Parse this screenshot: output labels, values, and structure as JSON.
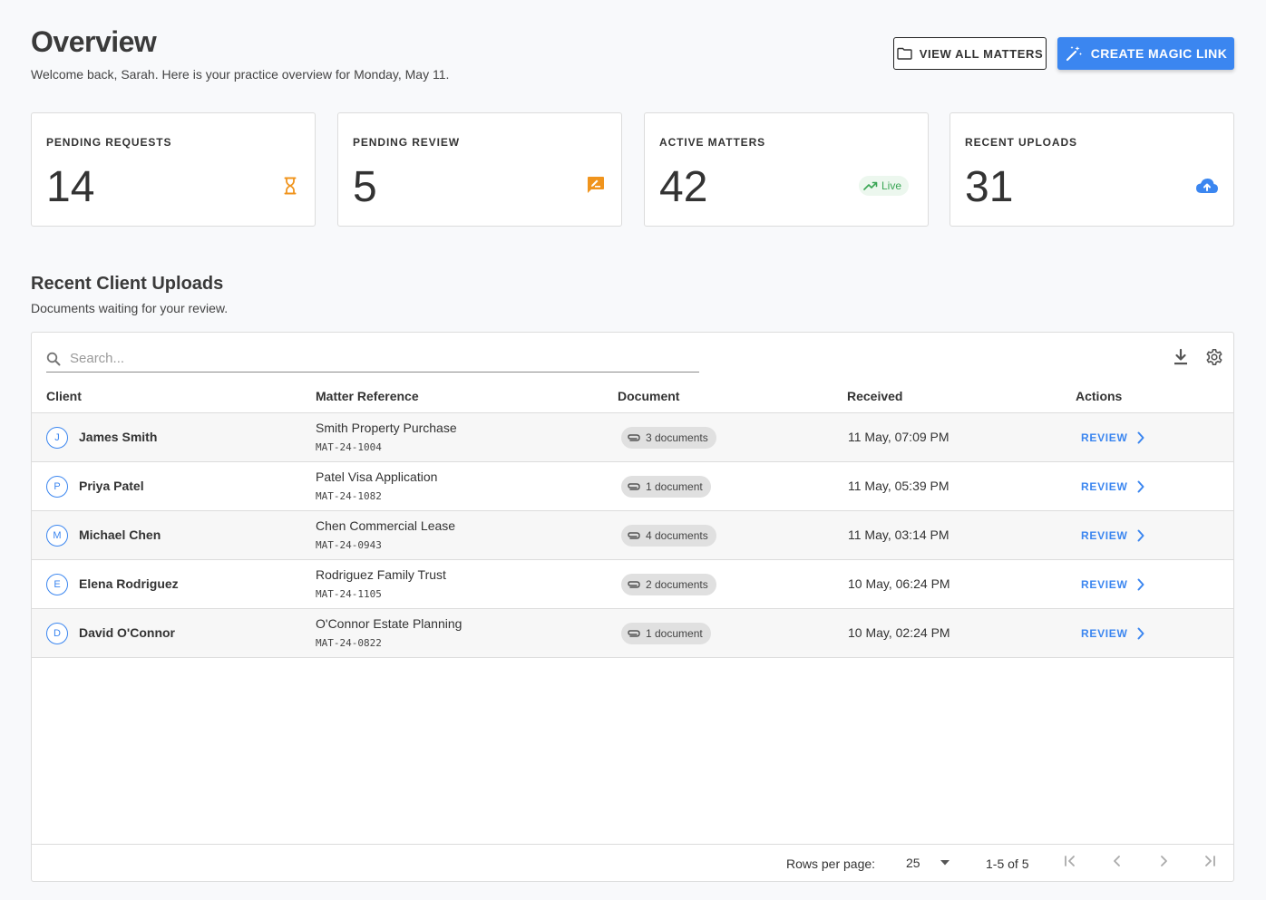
{
  "header": {
    "title": "Overview",
    "subtitle": "Welcome back, Sarah. Here is your practice overview for Monday, May 11.",
    "view_all_label": "VIEW ALL MATTERS",
    "create_link_label": "CREATE MAGIC LINK"
  },
  "stats": [
    {
      "label": "PENDING REQUESTS",
      "value": "14",
      "icon": "hourglass-icon",
      "color": "#f0941d"
    },
    {
      "label": "PENDING REVIEW",
      "value": "5",
      "icon": "rate-review-icon",
      "color": "#f0941d"
    },
    {
      "label": "ACTIVE MATTERS",
      "value": "42",
      "badge": "Live",
      "icon": "trending-up-icon",
      "color": "#3aa655"
    },
    {
      "label": "RECENT UPLOADS",
      "value": "31",
      "icon": "cloud-upload-icon",
      "color": "#3b86f0"
    }
  ],
  "section": {
    "title": "Recent Client Uploads",
    "subtitle": "Documents waiting for your review."
  },
  "table": {
    "search_placeholder": "Search...",
    "columns": [
      "Client",
      "Matter Reference",
      "Document",
      "Received",
      "Actions"
    ],
    "rows": [
      {
        "initial": "J",
        "client": "James Smith",
        "matter": "Smith Property Purchase",
        "ref": "MAT-24-1004",
        "documents": "3 documents",
        "received": "11 May, 07:09 PM",
        "action": "REVIEW"
      },
      {
        "initial": "P",
        "client": "Priya Patel",
        "matter": "Patel Visa Application",
        "ref": "MAT-24-1082",
        "documents": "1 document",
        "received": "11 May, 05:39 PM",
        "action": "REVIEW"
      },
      {
        "initial": "M",
        "client": "Michael Chen",
        "matter": "Chen Commercial Lease",
        "ref": "MAT-24-0943",
        "documents": "4 documents",
        "received": "11 May, 03:14 PM",
        "action": "REVIEW"
      },
      {
        "initial": "E",
        "client": "Elena Rodriguez",
        "matter": "Rodriguez Family Trust",
        "ref": "MAT-24-1105",
        "documents": "2 documents",
        "received": "10 May, 06:24 PM",
        "action": "REVIEW"
      },
      {
        "initial": "D",
        "client": "David O'Connor",
        "matter": "O'Connor Estate Planning",
        "ref": "MAT-24-0822",
        "documents": "1 document",
        "received": "10 May, 02:24 PM",
        "action": "REVIEW"
      }
    ]
  },
  "pagination": {
    "rows_per_page_label": "Rows per page:",
    "rows_per_page": "25",
    "range": "1-5 of 5"
  },
  "colors": {
    "accent": "#3b86f0",
    "warning": "#f0941d",
    "success": "#3aa655"
  }
}
